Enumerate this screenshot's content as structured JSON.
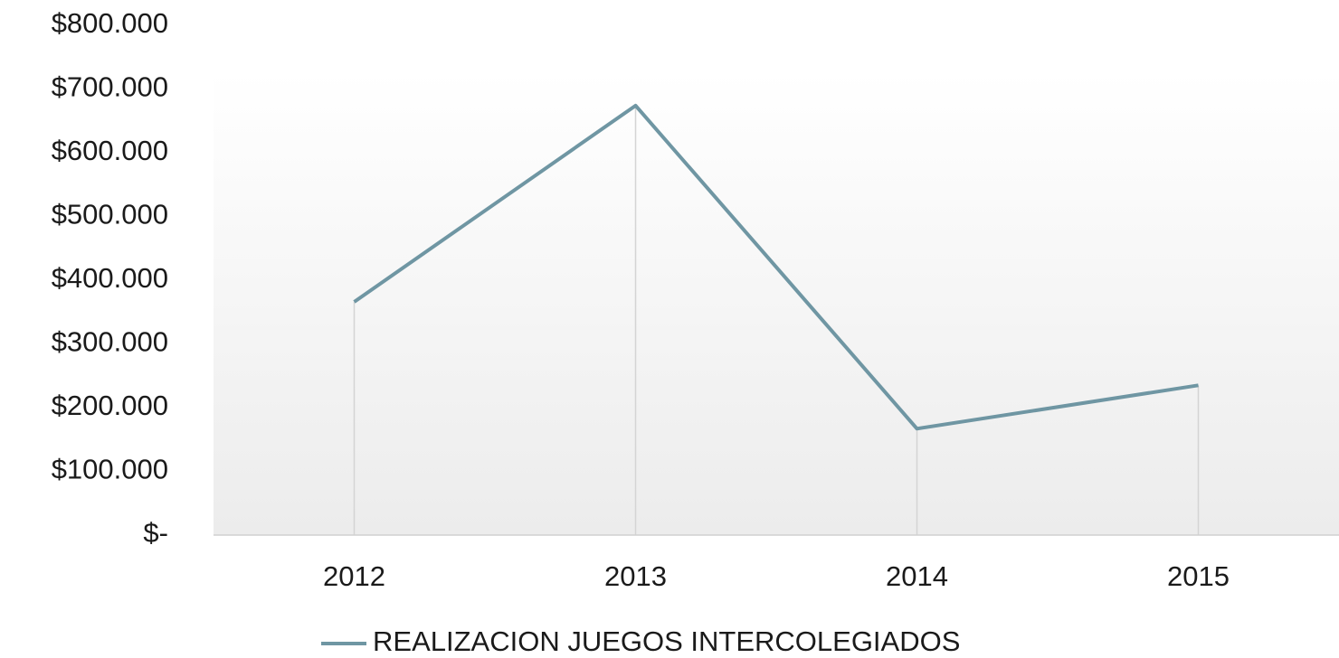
{
  "chart_data": {
    "type": "line",
    "categories": [
      "2012",
      "2013",
      "2014",
      "2015"
    ],
    "series": [
      {
        "name": "REALIZACION JUEGOS INTERCOLEGIADOS",
        "color": "#6f96a3",
        "values": [
          366000,
          674000,
          167000,
          235000
        ]
      }
    ],
    "ylim": [
      0,
      800000
    ],
    "yticks": [
      {
        "value": 0,
        "label": "$-"
      },
      {
        "value": 100000,
        "label": "$100.000"
      },
      {
        "value": 200000,
        "label": "$200.000"
      },
      {
        "value": 300000,
        "label": "$300.000"
      },
      {
        "value": 400000,
        "label": "$400.000"
      },
      {
        "value": 500000,
        "label": "$500.000"
      },
      {
        "value": 600000,
        "label": "$600.000"
      },
      {
        "value": 700000,
        "label": "$700.000"
      },
      {
        "value": 800000,
        "label": "$800.000"
      }
    ],
    "grid": false,
    "drop_lines": true,
    "legend": "bottom"
  }
}
